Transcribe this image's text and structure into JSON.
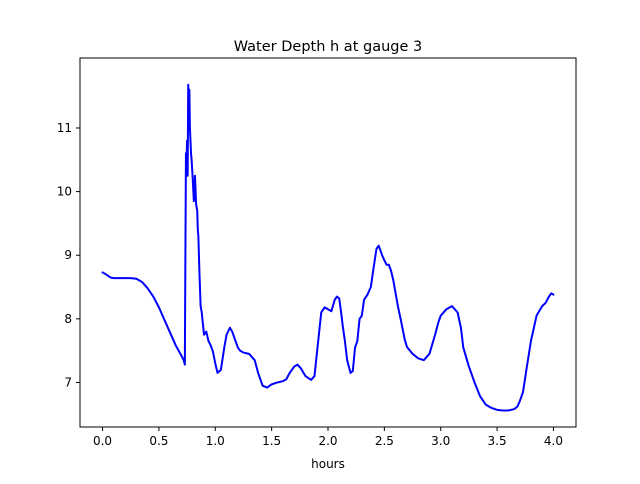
{
  "chart_data": {
    "type": "line",
    "title": "Water Depth h at gauge 3",
    "xlabel": "hours",
    "ylabel": "",
    "xlim": [
      -0.2,
      4.2
    ],
    "ylim": [
      6.3,
      12.1
    ],
    "xticks": [
      0.0,
      0.5,
      1.0,
      1.5,
      2.0,
      2.5,
      3.0,
      3.5,
      4.0
    ],
    "xtick_labels": [
      "0.0",
      "0.5",
      "1.0",
      "1.5",
      "2.0",
      "2.5",
      "3.0",
      "3.5",
      "4.0"
    ],
    "yticks": [
      7,
      8,
      9,
      10,
      11
    ],
    "ytick_labels": [
      "7",
      "8",
      "9",
      "10",
      "11"
    ],
    "grid": false,
    "legend": "none",
    "colors": {
      "line": "#0000ff",
      "axes": "#000000",
      "background": "#ffffff"
    },
    "series": [
      {
        "x": [
          0.0,
          0.03,
          0.07,
          0.1,
          0.15,
          0.2,
          0.25,
          0.3,
          0.35,
          0.4,
          0.45,
          0.5,
          0.55,
          0.6,
          0.65,
          0.7,
          0.72,
          0.73,
          0.735,
          0.74,
          0.745,
          0.75,
          0.755,
          0.76,
          0.765,
          0.77,
          0.775,
          0.78,
          0.785,
          0.79,
          0.8,
          0.81,
          0.82,
          0.83,
          0.84,
          0.845,
          0.85,
          0.86,
          0.87,
          0.88,
          0.9,
          0.92,
          0.94,
          0.96,
          0.98,
          1.0,
          1.02,
          1.05,
          1.08,
          1.1,
          1.13,
          1.15,
          1.18,
          1.2,
          1.22,
          1.25,
          1.3,
          1.35,
          1.38,
          1.42,
          1.46,
          1.5,
          1.55,
          1.6,
          1.63,
          1.66,
          1.7,
          1.73,
          1.76,
          1.8,
          1.85,
          1.88,
          1.91,
          1.94,
          1.97,
          2.0,
          2.03,
          2.06,
          2.08,
          2.1,
          2.12,
          2.13,
          2.15,
          2.17,
          2.2,
          2.22,
          2.24,
          2.26,
          2.28,
          2.3,
          2.32,
          2.35,
          2.38,
          2.4,
          2.43,
          2.45,
          2.47,
          2.48,
          2.5,
          2.52,
          2.54,
          2.56,
          2.58,
          2.6,
          2.62,
          2.65,
          2.68,
          2.7,
          2.75,
          2.8,
          2.85,
          2.9,
          2.95,
          2.98,
          3.0,
          3.05,
          3.1,
          3.15,
          3.18,
          3.2,
          3.25,
          3.3,
          3.35,
          3.4,
          3.45,
          3.5,
          3.55,
          3.6,
          3.65,
          3.68,
          3.7,
          3.73,
          3.76,
          3.8,
          3.85,
          3.9,
          3.93,
          3.96,
          3.98,
          4.0
        ],
        "y": [
          8.73,
          8.7,
          8.65,
          8.64,
          8.64,
          8.64,
          8.64,
          8.63,
          8.58,
          8.48,
          8.35,
          8.18,
          7.98,
          7.78,
          7.58,
          7.42,
          7.35,
          7.28,
          9.0,
          10.6,
          10.5,
          10.8,
          10.25,
          11.68,
          11.4,
          11.6,
          11.0,
          10.8,
          10.6,
          10.5,
          10.2,
          9.85,
          10.25,
          9.8,
          9.7,
          9.4,
          9.3,
          8.7,
          8.2,
          8.1,
          7.75,
          7.8,
          7.65,
          7.58,
          7.48,
          7.3,
          7.15,
          7.2,
          7.55,
          7.75,
          7.86,
          7.8,
          7.65,
          7.55,
          7.5,
          7.47,
          7.45,
          7.35,
          7.15,
          6.95,
          6.92,
          6.97,
          7.0,
          7.02,
          7.05,
          7.15,
          7.25,
          7.28,
          7.22,
          7.1,
          7.04,
          7.1,
          7.6,
          8.1,
          8.18,
          8.15,
          8.12,
          8.3,
          8.35,
          8.32,
          8.05,
          7.9,
          7.65,
          7.35,
          7.15,
          7.18,
          7.55,
          7.65,
          8.0,
          8.05,
          8.3,
          8.38,
          8.5,
          8.75,
          9.1,
          9.15,
          9.05,
          9.0,
          8.92,
          8.85,
          8.85,
          8.75,
          8.6,
          8.4,
          8.2,
          7.95,
          7.68,
          7.56,
          7.45,
          7.38,
          7.35,
          7.45,
          7.75,
          7.95,
          8.05,
          8.15,
          8.2,
          8.1,
          7.85,
          7.55,
          7.25,
          7.0,
          6.78,
          6.65,
          6.6,
          6.57,
          6.56,
          6.56,
          6.58,
          6.62,
          6.7,
          6.85,
          7.2,
          7.65,
          8.05,
          8.2,
          8.25,
          8.35,
          8.4,
          8.38
        ]
      }
    ]
  }
}
